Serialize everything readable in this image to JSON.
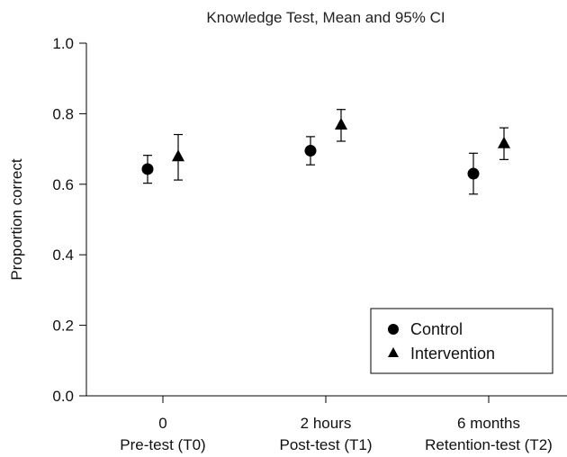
{
  "chart_data": {
    "type": "scatter",
    "title": "Knowledge Test, Mean and 95% CI",
    "ylabel": "Proportion correct",
    "xlabel": "",
    "ylim": [
      0,
      1.0
    ],
    "yticks": [
      "0.0",
      "0.2",
      "0.4",
      "0.6",
      "0.8",
      "1.0"
    ],
    "categories": [
      {
        "line1": "0",
        "line2": "Pre-test (T0)"
      },
      {
        "line1": "2 hours",
        "line2": "Post-test (T1)"
      },
      {
        "line1": "6 months",
        "line2": "Retention-test (T2)"
      }
    ],
    "series": [
      {
        "name": "Control",
        "marker": "circle",
        "values": [
          0.643,
          0.695,
          0.63
        ],
        "ci_low": [
          0.603,
          0.655,
          0.572
        ],
        "ci_high": [
          0.682,
          0.735,
          0.688
        ]
      },
      {
        "name": "Intervention",
        "marker": "triangle",
        "values": [
          0.678,
          0.768,
          0.715
        ],
        "ci_low": [
          0.612,
          0.722,
          0.67
        ],
        "ci_high": [
          0.741,
          0.812,
          0.76
        ]
      }
    ],
    "legend_position": "bottom-right",
    "grid": false
  }
}
